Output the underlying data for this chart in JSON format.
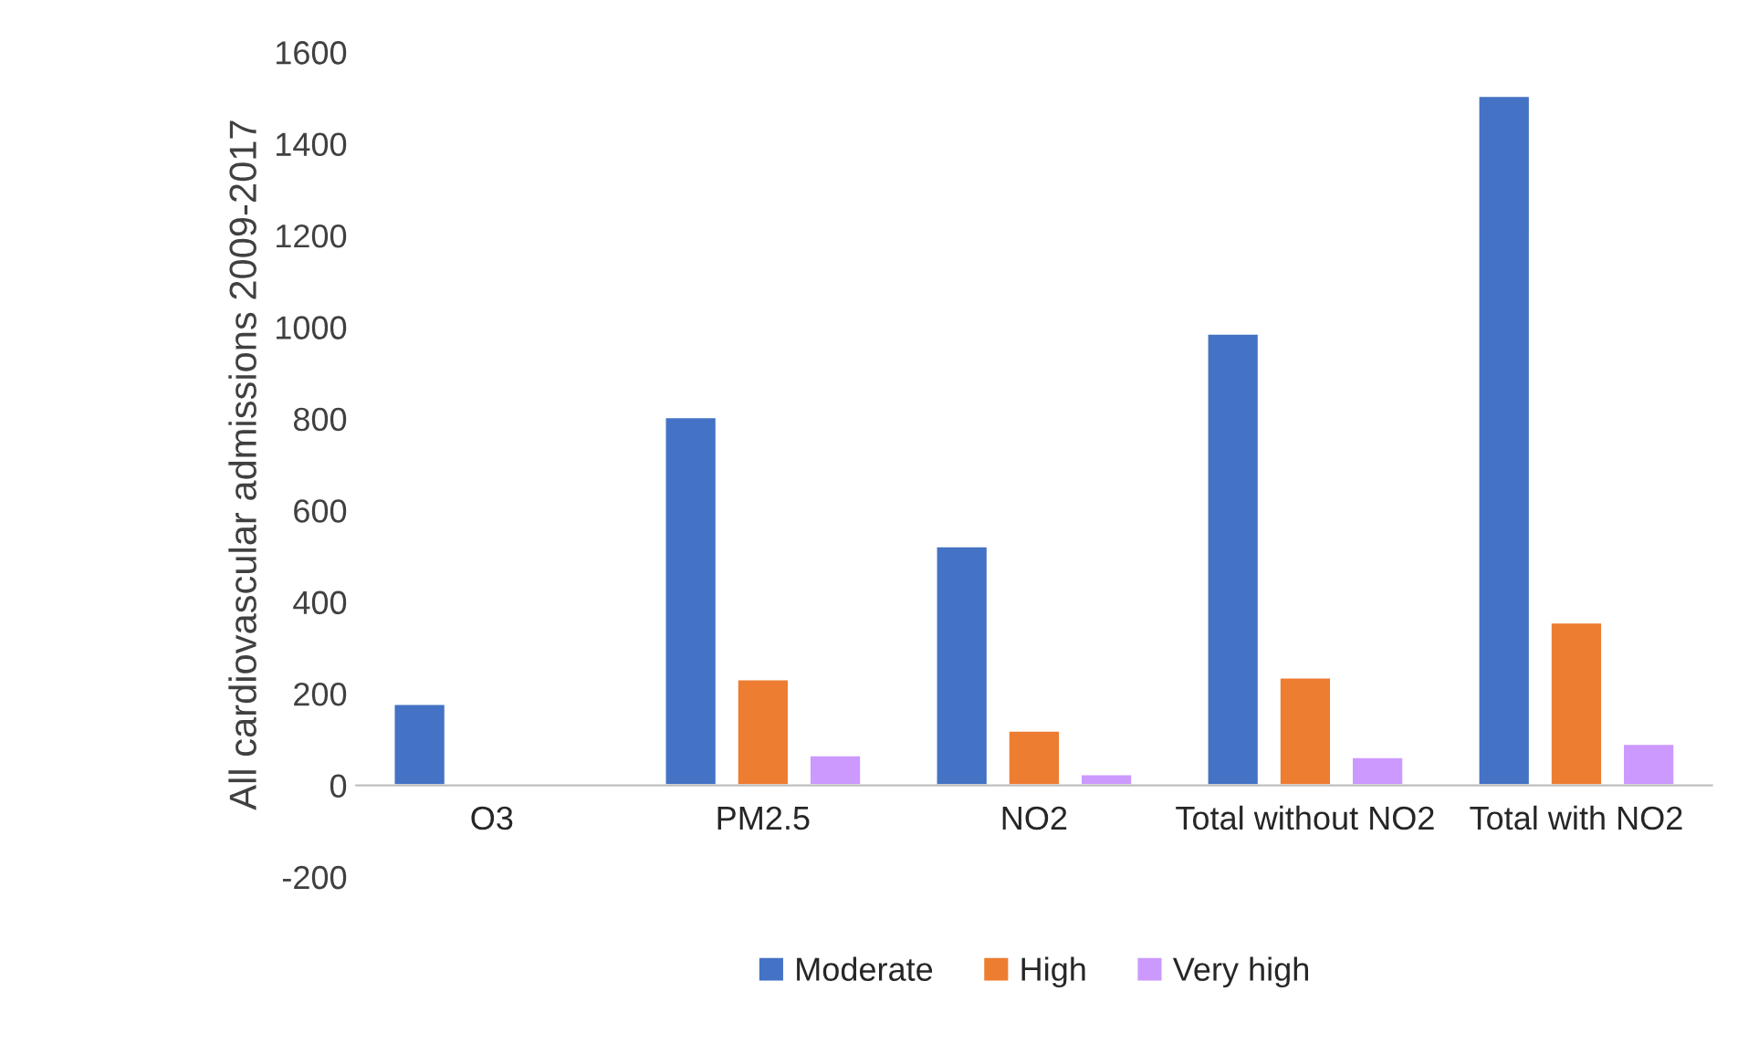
{
  "chart_data": {
    "type": "bar",
    "ylabel": "All cardiovascular admissions 2009-2017",
    "categories": [
      "O3",
      "PM2.5",
      "NO2",
      "Total without NO2",
      "Total with NO2"
    ],
    "series": [
      {
        "name": "Moderate",
        "color": "#4472c4",
        "values": [
          178,
          804,
          522,
          986,
          1505
        ]
      },
      {
        "name": "High",
        "color": "#ed7d31",
        "values": [
          2,
          232,
          120,
          236,
          356
        ]
      },
      {
        "name": "Very high",
        "color": "#cc99ff",
        "values": [
          null,
          66,
          25,
          62,
          91
        ]
      }
    ],
    "ylim": [
      -200,
      1600
    ],
    "yticks": [
      -200,
      0,
      200,
      400,
      600,
      800,
      1000,
      1200,
      1400,
      1600
    ],
    "legend": "bottom",
    "grid": false
  }
}
